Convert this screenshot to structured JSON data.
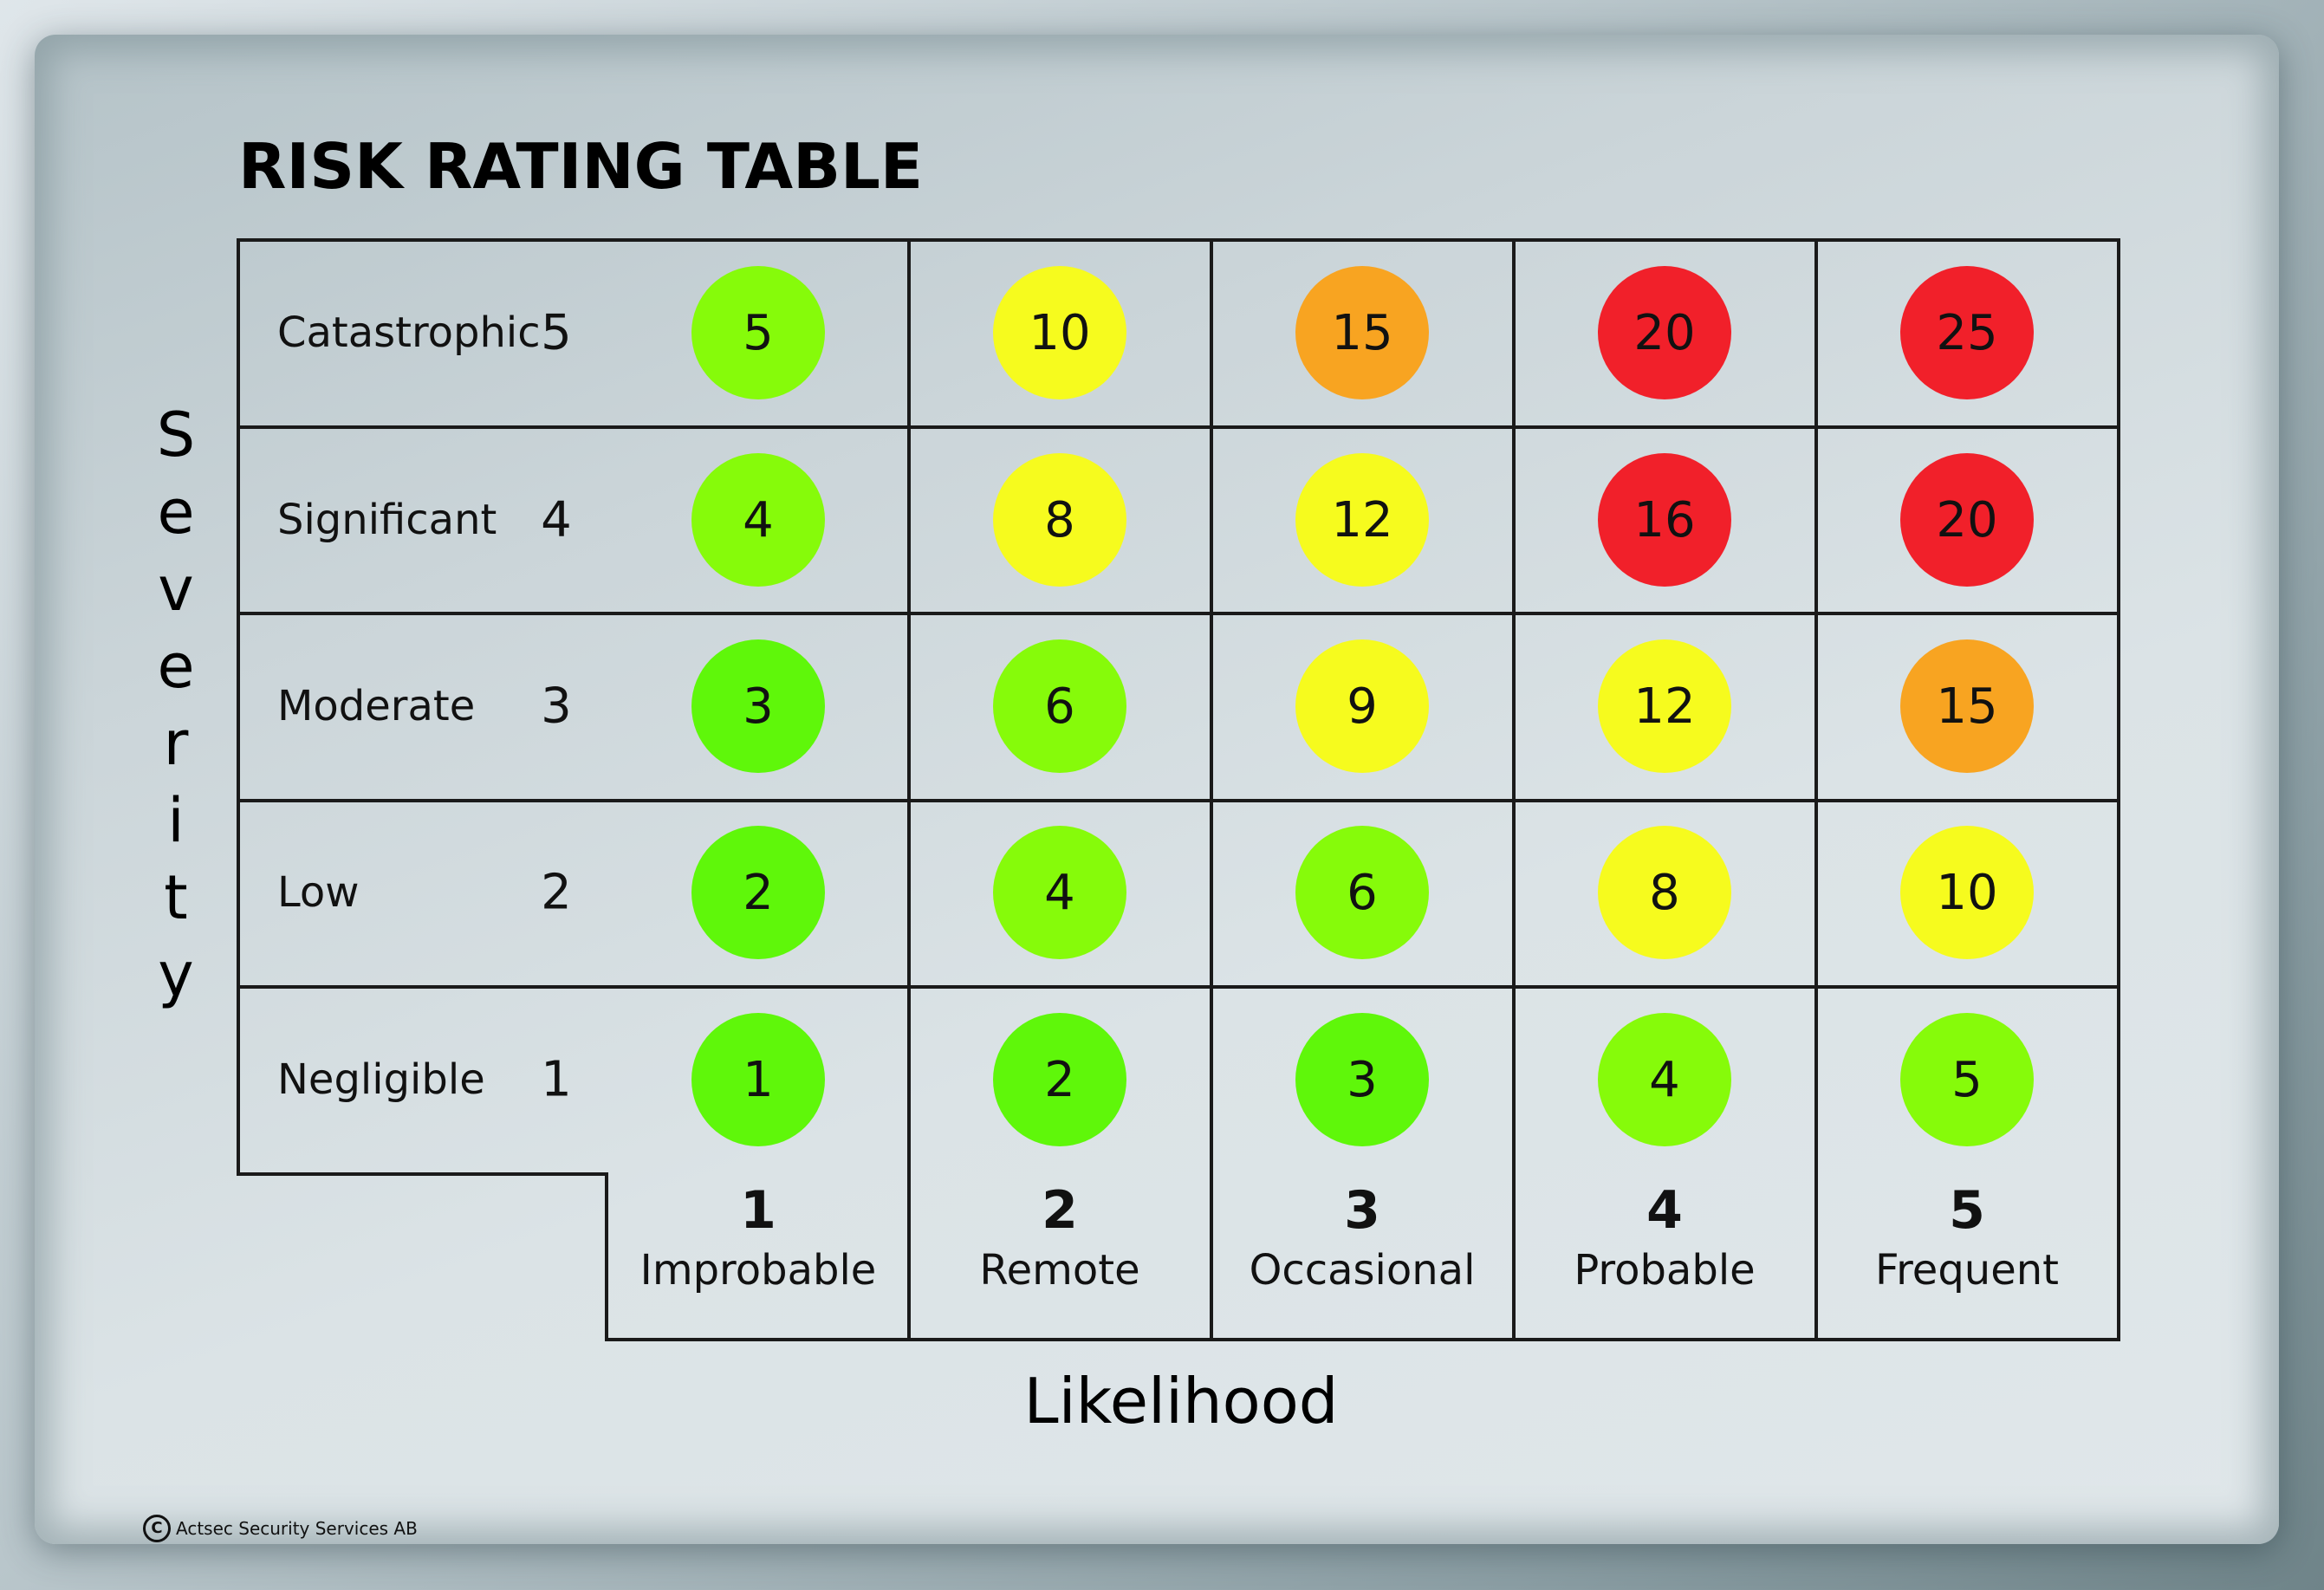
{
  "title": "RISK RATING TABLE",
  "axis": {
    "severity_label": "Severity",
    "likelihood_label": "Likelihood"
  },
  "severity_levels": [
    {
      "name": "Catastrophic",
      "value": "5"
    },
    {
      "name": "Significant",
      "value": "4"
    },
    {
      "name": "Moderate",
      "value": "3"
    },
    {
      "name": "Low",
      "value": "2"
    },
    {
      "name": "Negligible",
      "value": "1"
    }
  ],
  "likelihood_levels": [
    {
      "name": "Improbable",
      "value": "1"
    },
    {
      "name": "Remote",
      "value": "2"
    },
    {
      "name": "Occasional",
      "value": "3"
    },
    {
      "name": "Probable",
      "value": "4"
    },
    {
      "name": "Frequent",
      "value": "5"
    }
  ],
  "ratings": [
    [
      {
        "v": "5",
        "c": "#86fb0a"
      },
      {
        "v": "10",
        "c": "#f6fb1e"
      },
      {
        "v": "15",
        "c": "#f8a421"
      },
      {
        "v": "20",
        "c": "#f1202a"
      },
      {
        "v": "25",
        "c": "#f1202a"
      }
    ],
    [
      {
        "v": "4",
        "c": "#86fb0a"
      },
      {
        "v": "8",
        "c": "#f6fb1e"
      },
      {
        "v": "12",
        "c": "#f6fb1e"
      },
      {
        "v": "16",
        "c": "#f1202a"
      },
      {
        "v": "20",
        "c": "#f1202a"
      }
    ],
    [
      {
        "v": "3",
        "c": "#5ff70a"
      },
      {
        "v": "6",
        "c": "#86fb0a"
      },
      {
        "v": "9",
        "c": "#f6fb1e"
      },
      {
        "v": "12",
        "c": "#f6fb1e"
      },
      {
        "v": "15",
        "c": "#f8a421"
      }
    ],
    [
      {
        "v": "2",
        "c": "#5ff70a"
      },
      {
        "v": "4",
        "c": "#86fb0a"
      },
      {
        "v": "6",
        "c": "#86fb0a"
      },
      {
        "v": "8",
        "c": "#f6fb1e"
      },
      {
        "v": "10",
        "c": "#f6fb1e"
      }
    ],
    [
      {
        "v": "1",
        "c": "#5ff70a"
      },
      {
        "v": "2",
        "c": "#5ff70a"
      },
      {
        "v": "3",
        "c": "#5ff70a"
      },
      {
        "v": "4",
        "c": "#86fb0a"
      },
      {
        "v": "5",
        "c": "#86fb0a"
      }
    ]
  ],
  "copyright": {
    "symbol": "C",
    "text": "Actsec Security Services AB"
  }
}
